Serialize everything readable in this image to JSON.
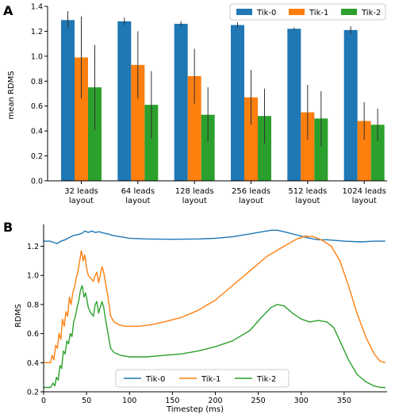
{
  "colors": {
    "Tik-0": "#1f77b4",
    "Tik-1": "#ff7f0e",
    "Tik-2": "#2ca02c",
    "axis": "#000000",
    "errorbar": "#303030"
  },
  "chart_data": [
    {
      "panel_label": "A",
      "type": "bar",
      "ylabel": "mean RDMS",
      "ylim": [
        0,
        1.4
      ],
      "yticks": [
        "0.0",
        "0.2",
        "0.4",
        "0.6",
        "0.8",
        "1.0",
        "1.2",
        "1.4"
      ],
      "ytick_values": [
        0,
        0.2,
        0.4,
        0.6,
        0.8,
        1.0,
        1.2,
        1.4
      ],
      "categories": [
        [
          "32 leads",
          "layout"
        ],
        [
          "64 leads",
          "layout"
        ],
        [
          "128 leads",
          "layout"
        ],
        [
          "256 leads",
          "layout"
        ],
        [
          "512 leads",
          "layout"
        ],
        [
          "1024 leads",
          "layout"
        ]
      ],
      "legend_position": "top-right",
      "series": [
        {
          "name": "Tik-0",
          "values": [
            1.29,
            1.28,
            1.26,
            1.25,
            1.22,
            1.21
          ],
          "error": [
            0.07,
            0.03,
            0.02,
            0.02,
            0.01,
            0.03
          ]
        },
        {
          "name": "Tik-1",
          "values": [
            0.99,
            0.93,
            0.84,
            0.67,
            0.55,
            0.48
          ],
          "error": [
            0.33,
            0.27,
            0.22,
            0.22,
            0.22,
            0.15
          ]
        },
        {
          "name": "Tik-2",
          "values": [
            0.75,
            0.61,
            0.53,
            0.52,
            0.5,
            0.45
          ],
          "error": [
            0.34,
            0.27,
            0.22,
            0.22,
            0.22,
            0.13
          ]
        }
      ]
    },
    {
      "panel_label": "B",
      "type": "line",
      "xlabel": "Timestep (ms)",
      "ylabel": "RDMS",
      "xlim": [
        0,
        400
      ],
      "ylim": [
        0.2,
        1.35
      ],
      "xticks": [
        "0",
        "50",
        "100",
        "150",
        "200",
        "250",
        "300",
        "350"
      ],
      "xtick_values": [
        0,
        50,
        100,
        150,
        200,
        250,
        300,
        350
      ],
      "yticks": [
        "0.2",
        "0.4",
        "0.6",
        "0.8",
        "1.0",
        "1.2"
      ],
      "ytick_values": [
        0.2,
        0.4,
        0.6,
        0.8,
        1.0,
        1.2
      ],
      "legend_position": "bottom-center",
      "series": [
        {
          "name": "Tik-0",
          "points": [
            [
              0,
              1.235
            ],
            [
              8,
              1.235
            ],
            [
              12,
              1.225
            ],
            [
              16,
              1.22
            ],
            [
              20,
              1.235
            ],
            [
              25,
              1.245
            ],
            [
              30,
              1.26
            ],
            [
              35,
              1.275
            ],
            [
              40,
              1.28
            ],
            [
              45,
              1.29
            ],
            [
              48,
              1.305
            ],
            [
              52,
              1.295
            ],
            [
              56,
              1.305
            ],
            [
              60,
              1.295
            ],
            [
              65,
              1.3
            ],
            [
              70,
              1.29
            ],
            [
              75,
              1.285
            ],
            [
              80,
              1.275
            ],
            [
              90,
              1.265
            ],
            [
              100,
              1.255
            ],
            [
              120,
              1.25
            ],
            [
              150,
              1.248
            ],
            [
              180,
              1.25
            ],
            [
              200,
              1.255
            ],
            [
              220,
              1.265
            ],
            [
              240,
              1.285
            ],
            [
              255,
              1.3
            ],
            [
              265,
              1.31
            ],
            [
              272,
              1.31
            ],
            [
              280,
              1.3
            ],
            [
              290,
              1.285
            ],
            [
              300,
              1.27
            ],
            [
              310,
              1.255
            ],
            [
              320,
              1.245
            ],
            [
              330,
              1.245
            ],
            [
              340,
              1.24
            ],
            [
              350,
              1.235
            ],
            [
              370,
              1.23
            ],
            [
              385,
              1.235
            ],
            [
              398,
              1.235
            ]
          ]
        },
        {
          "name": "Tik-1",
          "points": [
            [
              0,
              0.4
            ],
            [
              8,
              0.4
            ],
            [
              10,
              0.45
            ],
            [
              12,
              0.42
            ],
            [
              14,
              0.52
            ],
            [
              16,
              0.5
            ],
            [
              18,
              0.6
            ],
            [
              20,
              0.56
            ],
            [
              22,
              0.7
            ],
            [
              24,
              0.65
            ],
            [
              26,
              0.75
            ],
            [
              28,
              0.72
            ],
            [
              30,
              0.85
            ],
            [
              32,
              0.8
            ],
            [
              34,
              0.88
            ],
            [
              36,
              0.92
            ],
            [
              38,
              0.98
            ],
            [
              40,
              1.03
            ],
            [
              42,
              1.1
            ],
            [
              44,
              1.17
            ],
            [
              46,
              1.1
            ],
            [
              48,
              1.14
            ],
            [
              50,
              1.05
            ],
            [
              52,
              1.0
            ],
            [
              55,
              0.98
            ],
            [
              58,
              0.96
            ],
            [
              60,
              1.0
            ],
            [
              62,
              1.02
            ],
            [
              64,
              0.95
            ],
            [
              66,
              1.0
            ],
            [
              68,
              1.06
            ],
            [
              70,
              1.02
            ],
            [
              72,
              0.95
            ],
            [
              75,
              0.85
            ],
            [
              78,
              0.72
            ],
            [
              82,
              0.68
            ],
            [
              88,
              0.66
            ],
            [
              95,
              0.65
            ],
            [
              110,
              0.65
            ],
            [
              125,
              0.66
            ],
            [
              140,
              0.68
            ],
            [
              160,
              0.71
            ],
            [
              180,
              0.76
            ],
            [
              200,
              0.83
            ],
            [
              220,
              0.93
            ],
            [
              240,
              1.03
            ],
            [
              260,
              1.13
            ],
            [
              280,
              1.2
            ],
            [
              295,
              1.25
            ],
            [
              305,
              1.27
            ],
            [
              315,
              1.265
            ],
            [
              325,
              1.24
            ],
            [
              335,
              1.2
            ],
            [
              345,
              1.1
            ],
            [
              355,
              0.93
            ],
            [
              365,
              0.74
            ],
            [
              375,
              0.58
            ],
            [
              385,
              0.46
            ],
            [
              392,
              0.41
            ],
            [
              398,
              0.4
            ]
          ]
        },
        {
          "name": "Tik-2",
          "points": [
            [
              0,
              0.23
            ],
            [
              8,
              0.23
            ],
            [
              11,
              0.26
            ],
            [
              13,
              0.24
            ],
            [
              15,
              0.3
            ],
            [
              17,
              0.28
            ],
            [
              19,
              0.38
            ],
            [
              21,
              0.36
            ],
            [
              23,
              0.48
            ],
            [
              25,
              0.46
            ],
            [
              27,
              0.55
            ],
            [
              29,
              0.53
            ],
            [
              31,
              0.6
            ],
            [
              33,
              0.58
            ],
            [
              35,
              0.68
            ],
            [
              37,
              0.72
            ],
            [
              39,
              0.78
            ],
            [
              41,
              0.83
            ],
            [
              43,
              0.9
            ],
            [
              45,
              0.93
            ],
            [
              47,
              0.85
            ],
            [
              49,
              0.88
            ],
            [
              52,
              0.78
            ],
            [
              55,
              0.74
            ],
            [
              58,
              0.72
            ],
            [
              60,
              0.8
            ],
            [
              62,
              0.82
            ],
            [
              64,
              0.74
            ],
            [
              66,
              0.78
            ],
            [
              68,
              0.82
            ],
            [
              70,
              0.78
            ],
            [
              72,
              0.7
            ],
            [
              75,
              0.6
            ],
            [
              78,
              0.5
            ],
            [
              82,
              0.47
            ],
            [
              90,
              0.45
            ],
            [
              100,
              0.44
            ],
            [
              120,
              0.44
            ],
            [
              140,
              0.45
            ],
            [
              160,
              0.46
            ],
            [
              180,
              0.48
            ],
            [
              200,
              0.51
            ],
            [
              220,
              0.55
            ],
            [
              240,
              0.62
            ],
            [
              255,
              0.72
            ],
            [
              265,
              0.78
            ],
            [
              272,
              0.8
            ],
            [
              280,
              0.79
            ],
            [
              290,
              0.74
            ],
            [
              300,
              0.7
            ],
            [
              310,
              0.68
            ],
            [
              320,
              0.69
            ],
            [
              330,
              0.68
            ],
            [
              338,
              0.64
            ],
            [
              345,
              0.55
            ],
            [
              355,
              0.42
            ],
            [
              365,
              0.32
            ],
            [
              375,
              0.27
            ],
            [
              385,
              0.24
            ],
            [
              392,
              0.23
            ],
            [
              398,
              0.23
            ]
          ]
        }
      ]
    }
  ]
}
